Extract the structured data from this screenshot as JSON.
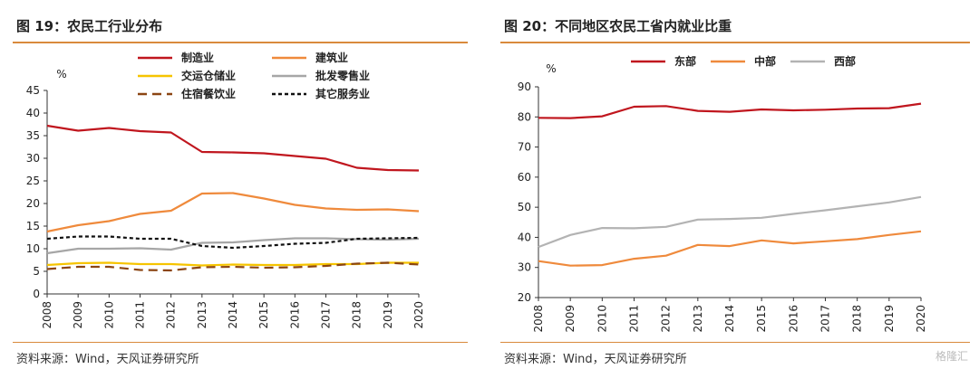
{
  "left_panel": {
    "title": "图 19：农民工行业分布",
    "source": "资料来源：Wind，天风证券研究所"
  },
  "right_panel": {
    "title": "图 20：不同地区农民工省内就业比重",
    "source": "资料来源：Wind，天风证券研究所"
  },
  "watermark": "格隆汇",
  "chart_data": [
    {
      "type": "line",
      "unit": "%",
      "x": [
        "2008",
        "2009",
        "2010",
        "2011",
        "2012",
        "2013",
        "2014",
        "2015",
        "2016",
        "2017",
        "2018",
        "2019",
        "2020"
      ],
      "ylim": [
        0,
        45
      ],
      "yticks": [
        0,
        5,
        10,
        15,
        20,
        25,
        30,
        35,
        40,
        45
      ],
      "grid": false,
      "legend_position": "top",
      "series": [
        {
          "name": "制造业",
          "color": "#c0161e",
          "dash": "",
          "values": [
            37.2,
            36.1,
            36.7,
            36.0,
            35.7,
            31.4,
            31.3,
            31.1,
            30.5,
            29.9,
            27.9,
            27.4,
            27.3
          ]
        },
        {
          "name": "建筑业",
          "color": "#ef8a3c",
          "dash": "",
          "values": [
            13.8,
            15.2,
            16.1,
            17.7,
            18.4,
            22.2,
            22.3,
            21.1,
            19.7,
            18.9,
            18.6,
            18.7,
            18.3
          ]
        },
        {
          "name": "交运仓储业",
          "color": "#f6c400",
          "dash": "",
          "values": [
            6.4,
            6.8,
            6.9,
            6.6,
            6.6,
            6.3,
            6.5,
            6.4,
            6.4,
            6.6,
            6.6,
            6.9,
            6.9
          ]
        },
        {
          "name": "批发零售业",
          "color": "#a6a6a6",
          "dash": "",
          "values": [
            9.0,
            10.0,
            10.0,
            10.1,
            9.8,
            11.3,
            11.4,
            11.9,
            12.3,
            12.3,
            12.1,
            12.0,
            12.2
          ]
        },
        {
          "name": "住宿餐饮业",
          "color": "#8b4513",
          "dash": "10,6",
          "values": [
            5.5,
            6.0,
            6.0,
            5.3,
            5.2,
            5.9,
            6.0,
            5.8,
            5.9,
            6.2,
            6.7,
            6.9,
            6.5
          ]
        },
        {
          "name": "其它服务业",
          "color": "#111111",
          "dash": "4,3",
          "values": [
            12.2,
            12.7,
            12.7,
            12.2,
            12.2,
            10.6,
            10.2,
            10.6,
            11.1,
            11.3,
            12.2,
            12.3,
            12.4
          ]
        }
      ]
    },
    {
      "type": "line",
      "unit": "%",
      "x": [
        "2008",
        "2009",
        "2010",
        "2011",
        "2012",
        "2013",
        "2014",
        "2015",
        "2016",
        "2017",
        "2018",
        "2019",
        "2020"
      ],
      "ylim": [
        20,
        90
      ],
      "yticks": [
        20,
        30,
        40,
        50,
        60,
        70,
        80,
        90
      ],
      "grid": false,
      "legend_position": "top",
      "series": [
        {
          "name": "东部",
          "color": "#c0161e",
          "dash": "",
          "values": [
            79.7,
            79.6,
            80.2,
            83.4,
            83.6,
            82.0,
            81.7,
            82.5,
            82.2,
            82.4,
            82.8,
            82.9,
            84.4
          ]
        },
        {
          "name": "中部",
          "color": "#ef8a3c",
          "dash": "",
          "values": [
            32.1,
            30.6,
            30.8,
            32.9,
            33.9,
            37.5,
            37.1,
            39.0,
            38.0,
            38.7,
            39.4,
            40.8,
            42.0
          ]
        },
        {
          "name": "西部",
          "color": "#b3b3b3",
          "dash": "",
          "values": [
            36.8,
            40.8,
            43.1,
            43.0,
            43.5,
            45.9,
            46.1,
            46.5,
            47.8,
            49.0,
            50.3,
            51.6,
            53.4
          ]
        }
      ]
    }
  ]
}
